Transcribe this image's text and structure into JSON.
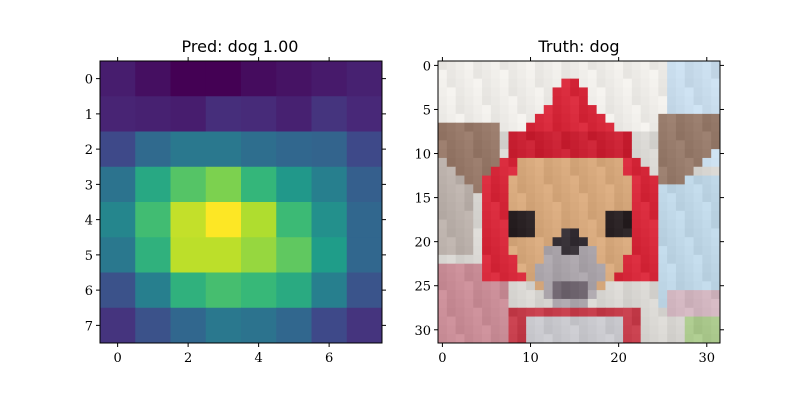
{
  "chart_data": [
    {
      "type": "heatmap",
      "title": "Pred: dog 1.00",
      "xlabel": "",
      "ylabel": "",
      "grid": false,
      "colormap": "viridis",
      "xlim": [
        -0.5,
        7.5
      ],
      "ylim": [
        7.5,
        -0.5
      ],
      "x_ticks": [
        0,
        2,
        4,
        6
      ],
      "y_ticks": [
        0,
        1,
        2,
        3,
        4,
        5,
        6,
        7
      ],
      "values": [
        [
          0.08,
          0.04,
          0.0,
          0.0,
          0.03,
          0.05,
          0.07,
          0.09
        ],
        [
          0.1,
          0.09,
          0.08,
          0.13,
          0.12,
          0.09,
          0.15,
          0.11
        ],
        [
          0.22,
          0.34,
          0.4,
          0.4,
          0.36,
          0.33,
          0.32,
          0.22
        ],
        [
          0.38,
          0.6,
          0.73,
          0.8,
          0.66,
          0.53,
          0.43,
          0.3
        ],
        [
          0.46,
          0.69,
          0.91,
          1.0,
          0.88,
          0.68,
          0.5,
          0.33
        ],
        [
          0.4,
          0.64,
          0.9,
          0.9,
          0.84,
          0.75,
          0.55,
          0.33
        ],
        [
          0.25,
          0.43,
          0.64,
          0.7,
          0.67,
          0.61,
          0.43,
          0.26
        ],
        [
          0.15,
          0.25,
          0.33,
          0.4,
          0.38,
          0.33,
          0.22,
          0.15
        ]
      ]
    },
    {
      "type": "image",
      "title": "Truth: dog",
      "xlabel": "",
      "ylabel": "",
      "grid": false,
      "xlim": [
        -0.5,
        31.5
      ],
      "ylim": [
        31.5,
        -0.5
      ],
      "x_ticks": [
        0,
        10,
        20,
        30
      ],
      "y_ticks": [
        0,
        5,
        10,
        15,
        20,
        25,
        30
      ],
      "image_size": [
        32,
        32
      ],
      "subject": "chihuahua wearing a red hood"
    }
  ]
}
